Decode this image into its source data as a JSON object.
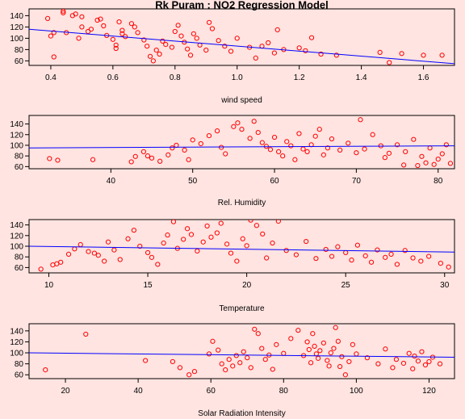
{
  "colors": {
    "background": "#ffe4e1",
    "points": "#ff0000",
    "regression_line": "#0000ff",
    "axes": "#000000"
  },
  "chart_data": [
    {
      "type": "scatter",
      "title": "Rk Puram : NO2 Regression Model",
      "xlabel": "wind speed",
      "xlim": [
        0.33,
        1.7
      ],
      "ylim": [
        52,
        152
      ],
      "xticks": [
        0.4,
        0.6,
        0.8,
        1.0,
        1.2,
        1.4,
        1.6
      ],
      "xtick_labels": [
        "0.4",
        "0.6",
        "0.8",
        "1.0",
        "1.2",
        "1.4",
        "1.6"
      ],
      "yticks": [
        60,
        80,
        100,
        120,
        140
      ],
      "ytick_labels": [
        "60",
        "80",
        "100",
        "120",
        "140"
      ],
      "regression_line": [
        [
          0.33,
          116
        ],
        [
          1.7,
          55
        ]
      ],
      "points": [
        [
          0.39,
          135
        ],
        [
          0.4,
          104
        ],
        [
          0.41,
          110
        ],
        [
          0.41,
          67
        ],
        [
          0.44,
          148
        ],
        [
          0.44,
          145
        ],
        [
          0.45,
          110
        ],
        [
          0.47,
          140
        ],
        [
          0.48,
          143
        ],
        [
          0.49,
          100
        ],
        [
          0.5,
          138
        ],
        [
          0.5,
          120
        ],
        [
          0.52,
          112
        ],
        [
          0.53,
          116
        ],
        [
          0.55,
          132
        ],
        [
          0.56,
          134
        ],
        [
          0.57,
          122
        ],
        [
          0.58,
          105
        ],
        [
          0.6,
          98
        ],
        [
          0.61,
          88
        ],
        [
          0.61,
          82
        ],
        [
          0.62,
          129
        ],
        [
          0.63,
          114
        ],
        [
          0.63,
          108
        ],
        [
          0.64,
          103
        ],
        [
          0.66,
          126
        ],
        [
          0.67,
          120
        ],
        [
          0.68,
          110
        ],
        [
          0.7,
          97
        ],
        [
          0.71,
          86
        ],
        [
          0.72,
          68
        ],
        [
          0.73,
          60
        ],
        [
          0.74,
          79
        ],
        [
          0.75,
          72
        ],
        [
          0.76,
          95
        ],
        [
          0.77,
          89
        ],
        [
          0.79,
          84
        ],
        [
          0.8,
          112
        ],
        [
          0.81,
          123
        ],
        [
          0.82,
          104
        ],
        [
          0.83,
          93
        ],
        [
          0.84,
          81
        ],
        [
          0.85,
          70
        ],
        [
          0.86,
          108
        ],
        [
          0.87,
          100
        ],
        [
          0.88,
          88
        ],
        [
          0.9,
          79
        ],
        [
          0.91,
          128
        ],
        [
          0.92,
          117
        ],
        [
          0.94,
          96
        ],
        [
          0.96,
          86
        ],
        [
          0.98,
          77
        ],
        [
          1.0,
          100
        ],
        [
          1.04,
          84
        ],
        [
          1.06,
          65
        ],
        [
          1.08,
          86
        ],
        [
          1.1,
          92
        ],
        [
          1.12,
          74
        ],
        [
          1.13,
          115
        ],
        [
          1.15,
          80
        ],
        [
          1.2,
          83
        ],
        [
          1.22,
          78
        ],
        [
          1.24,
          101
        ],
        [
          1.27,
          72
        ],
        [
          1.32,
          70
        ],
        [
          1.46,
          75
        ],
        [
          1.49,
          57
        ],
        [
          1.53,
          73
        ],
        [
          1.6,
          70
        ],
        [
          1.66,
          70
        ]
      ]
    },
    {
      "type": "scatter",
      "xlabel": "Rel. Humidity",
      "xlim": [
        30,
        82
      ],
      "ylim": [
        56,
        156
      ],
      "xticks": [
        40,
        50,
        60,
        70,
        80
      ],
      "xtick_labels": [
        "40",
        "50",
        "60",
        "70",
        "80"
      ],
      "yticks": [
        60,
        80,
        100,
        120,
        140
      ],
      "ytick_labels": [
        "60",
        "80",
        "100",
        "120",
        "140"
      ],
      "regression_line": [
        [
          30,
          95
        ],
        [
          82,
          99
        ]
      ],
      "points": [
        [
          32.5,
          75
        ],
        [
          33.5,
          72
        ],
        [
          37.8,
          73
        ],
        [
          42.5,
          69
        ],
        [
          43,
          79
        ],
        [
          44,
          88
        ],
        [
          44.5,
          80
        ],
        [
          45,
          76
        ],
        [
          46,
          70
        ],
        [
          47,
          82
        ],
        [
          47.5,
          95
        ],
        [
          48,
          100
        ],
        [
          49,
          91
        ],
        [
          49.5,
          73
        ],
        [
          50,
          110
        ],
        [
          51,
          103
        ],
        [
          52,
          118
        ],
        [
          53,
          127
        ],
        [
          53.5,
          96
        ],
        [
          54,
          84
        ],
        [
          55,
          135
        ],
        [
          55.5,
          142
        ],
        [
          56,
          130
        ],
        [
          57,
          113
        ],
        [
          57.5,
          145
        ],
        [
          58,
          124
        ],
        [
          58.5,
          105
        ],
        [
          59,
          98
        ],
        [
          59.5,
          92
        ],
        [
          60,
          115
        ],
        [
          60.5,
          88
        ],
        [
          61,
          80
        ],
        [
          61.5,
          107
        ],
        [
          62,
          99
        ],
        [
          62.5,
          73
        ],
        [
          63,
          122
        ],
        [
          63.5,
          93
        ],
        [
          64,
          88
        ],
        [
          64.5,
          101
        ],
        [
          65,
          117
        ],
        [
          65.5,
          130
        ],
        [
          66,
          82
        ],
        [
          66.5,
          95
        ],
        [
          67,
          112
        ],
        [
          68,
          91
        ],
        [
          69,
          104
        ],
        [
          70,
          86
        ],
        [
          70.5,
          148
        ],
        [
          71,
          93
        ],
        [
          72,
          120
        ],
        [
          73,
          99
        ],
        [
          73.5,
          77
        ],
        [
          74,
          85
        ],
        [
          75,
          101
        ],
        [
          76,
          88
        ],
        [
          77,
          111
        ],
        [
          78,
          79
        ],
        [
          79,
          95
        ],
        [
          80,
          74
        ],
        [
          80.5,
          84
        ],
        [
          81,
          101
        ],
        [
          81.5,
          66
        ],
        [
          75.8,
          63
        ],
        [
          77.5,
          62
        ],
        [
          78.5,
          67
        ],
        [
          79.5,
          64
        ]
      ]
    },
    {
      "type": "scatter",
      "xlabel": "Temperature",
      "xlim": [
        9,
        30.5
      ],
      "ylim": [
        50,
        150
      ],
      "xticks": [
        10,
        15,
        20,
        25,
        30
      ],
      "xtick_labels": [
        "10",
        "15",
        "20",
        "25",
        "30"
      ],
      "yticks": [
        60,
        80,
        100,
        120,
        140
      ],
      "ytick_labels": [
        "60",
        "80",
        "100",
        "120",
        "140"
      ],
      "regression_line": [
        [
          9,
          100
        ],
        [
          30.5,
          89
        ]
      ],
      "points": [
        [
          9.6,
          57
        ],
        [
          10.2,
          65
        ],
        [
          10.4,
          67
        ],
        [
          10.6,
          70
        ],
        [
          11,
          85
        ],
        [
          11.3,
          95
        ],
        [
          11.6,
          103
        ],
        [
          12,
          90
        ],
        [
          12.3,
          87
        ],
        [
          12.5,
          83
        ],
        [
          12.8,
          72
        ],
        [
          13,
          108
        ],
        [
          13.3,
          93
        ],
        [
          13.6,
          75
        ],
        [
          14,
          114
        ],
        [
          14.3,
          130
        ],
        [
          14.6,
          100
        ],
        [
          15,
          88
        ],
        [
          15.2,
          79
        ],
        [
          15.5,
          66
        ],
        [
          15.8,
          106
        ],
        [
          16,
          121
        ],
        [
          16.3,
          146
        ],
        [
          16.5,
          96
        ],
        [
          16.8,
          113
        ],
        [
          17,
          133
        ],
        [
          17.2,
          122
        ],
        [
          17.5,
          91
        ],
        [
          17.8,
          108
        ],
        [
          18,
          138
        ],
        [
          18.2,
          117
        ],
        [
          18.5,
          125
        ],
        [
          18.7,
          143
        ],
        [
          19,
          104
        ],
        [
          19.2,
          87
        ],
        [
          19.5,
          72
        ],
        [
          19.8,
          114
        ],
        [
          20,
          101
        ],
        [
          20.2,
          149
        ],
        [
          20.5,
          139
        ],
        [
          20.8,
          123
        ],
        [
          21,
          78
        ],
        [
          21.3,
          106
        ],
        [
          21.6,
          147
        ],
        [
          22,
          92
        ],
        [
          22.5,
          84
        ],
        [
          23,
          109
        ],
        [
          23.5,
          77
        ],
        [
          24,
          94
        ],
        [
          24.3,
          81
        ],
        [
          24.6,
          99
        ],
        [
          25,
          88
        ],
        [
          25.3,
          74
        ],
        [
          25.6,
          102
        ],
        [
          26,
          82
        ],
        [
          26.3,
          70
        ],
        [
          26.6,
          93
        ],
        [
          27,
          79
        ],
        [
          27.3,
          85
        ],
        [
          27.6,
          66
        ],
        [
          28,
          92
        ],
        [
          28.4,
          78
        ],
        [
          28.8,
          72
        ],
        [
          29.2,
          81
        ],
        [
          29.8,
          68
        ],
        [
          30.2,
          61
        ]
      ]
    },
    {
      "type": "scatter",
      "xlabel": "Solar Radiation Intensity",
      "xlim": [
        10,
        127
      ],
      "ylim": [
        53,
        153
      ],
      "xticks": [
        20,
        40,
        60,
        80,
        100,
        120
      ],
      "xtick_labels": [
        "20",
        "40",
        "60",
        "80",
        "100",
        "120"
      ],
      "yticks": [
        60,
        80,
        100,
        120,
        140
      ],
      "ytick_labels": [
        "60",
        "80",
        "100",
        "120",
        "140"
      ],
      "regression_line": [
        [
          10,
          100
        ],
        [
          127,
          92
        ]
      ],
      "points": [
        [
          14.5,
          69
        ],
        [
          25.6,
          134
        ],
        [
          42,
          86
        ],
        [
          49.5,
          84
        ],
        [
          51.5,
          73
        ],
        [
          54,
          60
        ],
        [
          55.5,
          66
        ],
        [
          59.5,
          98
        ],
        [
          60.5,
          121
        ],
        [
          62,
          105
        ],
        [
          63,
          80
        ],
        [
          64,
          69
        ],
        [
          65,
          88
        ],
        [
          66,
          76
        ],
        [
          67,
          95
        ],
        [
          68,
          82
        ],
        [
          69,
          102
        ],
        [
          70,
          91
        ],
        [
          71,
          73
        ],
        [
          72,
          143
        ],
        [
          73,
          135
        ],
        [
          74,
          108
        ],
        [
          75,
          88
        ],
        [
          76,
          96
        ],
        [
          77,
          70
        ],
        [
          78,
          115
        ],
        [
          80,
          99
        ],
        [
          82,
          126
        ],
        [
          84,
          141
        ],
        [
          85.5,
          95
        ],
        [
          86.5,
          120
        ],
        [
          87,
          106
        ],
        [
          87.5,
          82
        ],
        [
          88,
          135
        ],
        [
          88.5,
          112
        ],
        [
          89,
          98
        ],
        [
          89.5,
          90
        ],
        [
          90,
          104
        ],
        [
          91,
          118
        ],
        [
          92,
          86
        ],
        [
          92.5,
          76
        ],
        [
          93,
          100
        ],
        [
          93.8,
          108
        ],
        [
          94.3,
          146
        ],
        [
          95,
          121
        ],
        [
          95.5,
          75
        ],
        [
          96,
          93
        ],
        [
          97,
          60
        ],
        [
          98,
          84
        ],
        [
          99,
          115
        ],
        [
          100,
          98
        ],
        [
          103,
          91
        ],
        [
          106,
          80
        ],
        [
          108,
          107
        ],
        [
          110,
          73
        ],
        [
          111,
          88
        ],
        [
          113,
          81
        ],
        [
          114.5,
          99
        ],
        [
          115.5,
          71
        ],
        [
          116,
          94
        ],
        [
          117,
          85
        ],
        [
          118,
          102
        ],
        [
          119,
          78
        ],
        [
          120,
          84
        ],
        [
          121,
          92
        ],
        [
          123,
          80
        ]
      ]
    }
  ]
}
